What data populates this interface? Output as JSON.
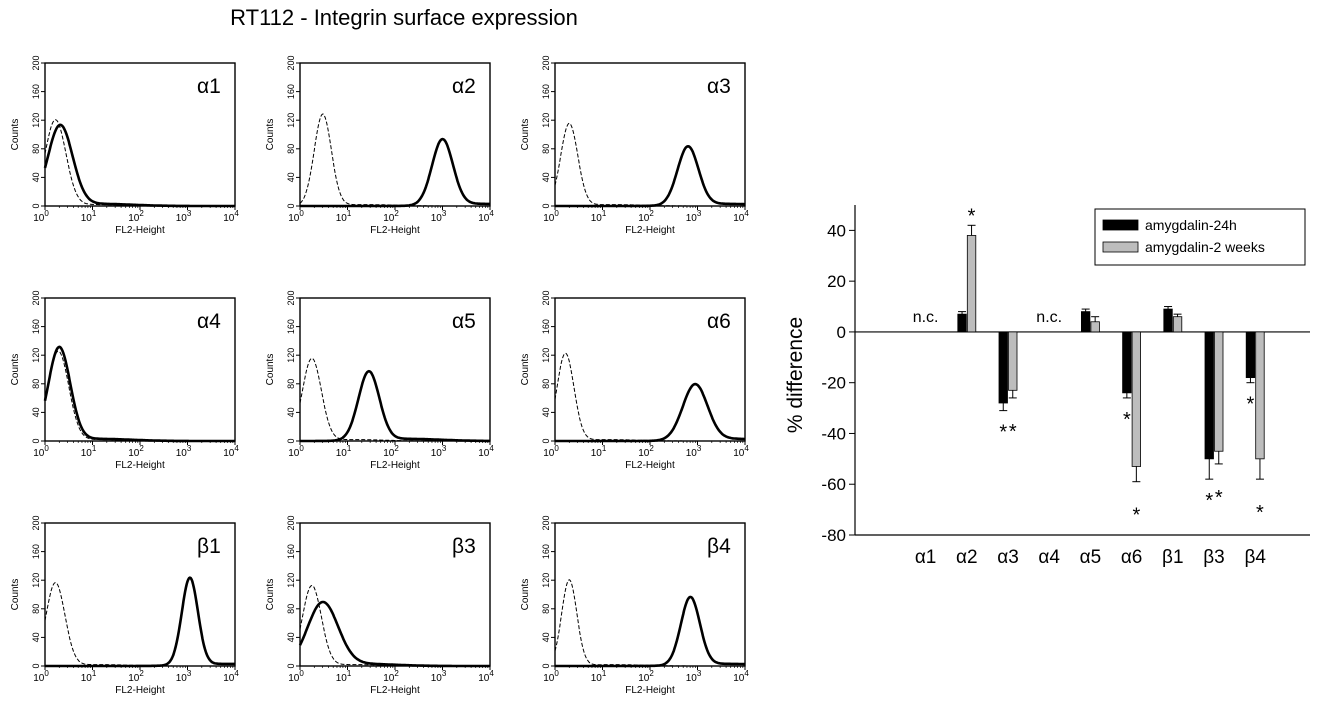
{
  "title": "RT112 - Integrin surface expression",
  "chart_data": [
    {
      "type": "line",
      "panels": [
        {
          "label": "α1",
          "ctrl_peak": 0.22,
          "ctrl_height": 120,
          "ctrl_width": 0.22,
          "ab_peak": 0.32,
          "ab_height": 112,
          "ab_width": 0.26
        },
        {
          "label": "α2",
          "ctrl_peak": 0.48,
          "ctrl_height": 128,
          "ctrl_width": 0.18,
          "ab_peak": 3.0,
          "ab_height": 92,
          "ab_width": 0.22
        },
        {
          "label": "α3",
          "ctrl_peak": 0.3,
          "ctrl_height": 115,
          "ctrl_width": 0.18,
          "ab_peak": 2.8,
          "ab_height": 82,
          "ab_width": 0.22
        },
        {
          "label": "α4",
          "ctrl_peak": 0.28,
          "ctrl_height": 125,
          "ctrl_width": 0.22,
          "ab_peak": 0.3,
          "ab_height": 130,
          "ab_width": 0.23
        },
        {
          "label": "α5",
          "ctrl_peak": 0.25,
          "ctrl_height": 115,
          "ctrl_width": 0.2,
          "ab_peak": 1.45,
          "ab_height": 96,
          "ab_width": 0.22
        },
        {
          "label": "α6",
          "ctrl_peak": 0.22,
          "ctrl_height": 122,
          "ctrl_width": 0.18,
          "ab_peak": 2.95,
          "ab_height": 78,
          "ab_width": 0.26
        },
        {
          "label": "β1",
          "ctrl_peak": 0.22,
          "ctrl_height": 116,
          "ctrl_width": 0.2,
          "ab_peak": 3.05,
          "ab_height": 122,
          "ab_width": 0.17
        },
        {
          "label": "β3",
          "ctrl_peak": 0.25,
          "ctrl_height": 112,
          "ctrl_width": 0.2,
          "ab_peak": 0.48,
          "ab_height": 88,
          "ab_width": 0.32
        },
        {
          "label": "β4",
          "ctrl_peak": 0.3,
          "ctrl_height": 120,
          "ctrl_width": 0.16,
          "ab_peak": 2.85,
          "ab_height": 95,
          "ab_width": 0.2
        }
      ],
      "xlabel": "FL2-Height",
      "ylabel": "Counts",
      "yticks": [
        "0",
        "40",
        "80",
        "120",
        "160",
        "200"
      ],
      "ylim": [
        0,
        200
      ],
      "xlim": [
        0,
        4
      ],
      "xticks": [
        {
          "base": "10",
          "exp": "0"
        },
        {
          "base": "10",
          "exp": "1"
        },
        {
          "base": "10",
          "exp": "2"
        },
        {
          "base": "10",
          "exp": "3"
        },
        {
          "base": "10",
          "exp": "4"
        }
      ]
    },
    {
      "type": "bar",
      "categories": [
        "α1",
        "α2",
        "α3",
        "α4",
        "α5",
        "α6",
        "β1",
        "β3",
        "β4"
      ],
      "series": [
        {
          "name": "amygdalin-24h",
          "color": "#000000",
          "values": [
            null,
            7,
            -28,
            null,
            8,
            -24,
            9,
            -50,
            -18
          ],
          "errors": [
            null,
            1,
            3,
            null,
            1,
            2,
            1,
            8,
            2
          ],
          "significant": [
            false,
            false,
            true,
            false,
            false,
            true,
            false,
            true,
            true
          ]
        },
        {
          "name": "amygdalin-2 weeks",
          "color": "#bdbdbd",
          "values": [
            null,
            38,
            -23,
            null,
            4,
            -53,
            6,
            -47,
            -50
          ],
          "errors": [
            null,
            4,
            3,
            null,
            2,
            6,
            1,
            5,
            8
          ],
          "significant": [
            false,
            true,
            true,
            false,
            false,
            true,
            false,
            true,
            true
          ]
        }
      ],
      "annotations": [
        {
          "category": "α1",
          "text": "n.c."
        },
        {
          "category": "α4",
          "text": "n.c."
        }
      ],
      "sig_mark": "*",
      "ylabel": "% difference",
      "ylim": [
        -80,
        50
      ],
      "yticks": [
        "40",
        "20",
        "0",
        "-20",
        "-40",
        "-60",
        "-80"
      ]
    }
  ]
}
